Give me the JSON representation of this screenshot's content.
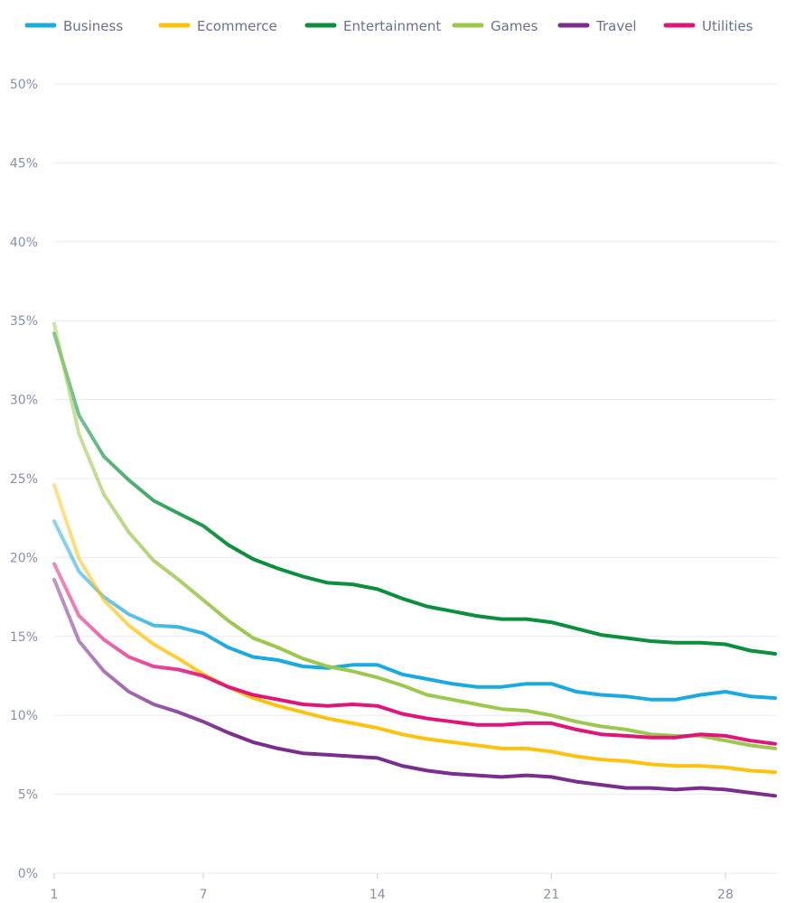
{
  "chart_data": {
    "type": "line",
    "title": "",
    "xlabel": "",
    "ylabel": "",
    "x": [
      1,
      2,
      3,
      4,
      5,
      6,
      7,
      8,
      9,
      10,
      11,
      12,
      13,
      14,
      15,
      16,
      17,
      18,
      19,
      20,
      21,
      22,
      23,
      24,
      25,
      26,
      27,
      28,
      29,
      30
    ],
    "xticks": [
      1,
      7,
      14,
      21,
      28
    ],
    "xtick_labels": [
      "1",
      "7",
      "14",
      "21",
      "28"
    ],
    "yticks": [
      0,
      5,
      10,
      15,
      20,
      25,
      30,
      35,
      40,
      45,
      50
    ],
    "ytick_labels": [
      "0%",
      "5%",
      "10%",
      "15%",
      "20%",
      "25%",
      "30%",
      "35%",
      "40%",
      "45%",
      "50%"
    ],
    "ylim": [
      0,
      50
    ],
    "grid": true,
    "legend_position": "top",
    "series": [
      {
        "name": "Business",
        "color": "#1ba9e1",
        "values": [
          22.3,
          19.1,
          17.5,
          16.4,
          15.7,
          15.6,
          15.2,
          14.3,
          13.7,
          13.5,
          13.1,
          13.0,
          13.2,
          13.2,
          12.6,
          12.3,
          12.0,
          11.8,
          11.8,
          12.0,
          12.0,
          11.5,
          11.3,
          11.2,
          11.0,
          11.0,
          11.3,
          11.5,
          11.2,
          11.1
        ]
      },
      {
        "name": "Ecommerce",
        "color": "#ffc20e",
        "values": [
          24.6,
          19.9,
          17.3,
          15.7,
          14.5,
          13.6,
          12.6,
          11.8,
          11.1,
          10.6,
          10.2,
          9.8,
          9.5,
          9.2,
          8.8,
          8.5,
          8.3,
          8.1,
          7.9,
          7.9,
          7.7,
          7.4,
          7.2,
          7.1,
          6.9,
          6.8,
          6.8,
          6.7,
          6.5,
          6.4
        ]
      },
      {
        "name": "Entertainment",
        "color": "#0a8f3c",
        "values": [
          34.2,
          29.0,
          26.4,
          24.9,
          23.6,
          22.8,
          22.0,
          20.8,
          19.9,
          19.3,
          18.8,
          18.4,
          18.3,
          18.0,
          17.4,
          16.9,
          16.6,
          16.3,
          16.1,
          16.1,
          15.9,
          15.5,
          15.1,
          14.9,
          14.7,
          14.6,
          14.6,
          14.5,
          14.1,
          13.9
        ]
      },
      {
        "name": "Games",
        "color": "#9dc84f",
        "values": [
          34.8,
          27.8,
          24.0,
          21.6,
          19.8,
          18.6,
          17.3,
          16.0,
          14.9,
          14.3,
          13.6,
          13.1,
          12.8,
          12.4,
          11.9,
          11.3,
          11.0,
          10.7,
          10.4,
          10.3,
          10.0,
          9.6,
          9.3,
          9.1,
          8.8,
          8.7,
          8.7,
          8.4,
          8.1,
          7.9
        ]
      },
      {
        "name": "Travel",
        "color": "#7b2d8e",
        "values": [
          18.6,
          14.7,
          12.8,
          11.5,
          10.7,
          10.2,
          9.6,
          8.9,
          8.3,
          7.9,
          7.6,
          7.5,
          7.4,
          7.3,
          6.8,
          6.5,
          6.3,
          6.2,
          6.1,
          6.2,
          6.1,
          5.8,
          5.6,
          5.4,
          5.4,
          5.3,
          5.4,
          5.3,
          5.1,
          4.9
        ]
      },
      {
        "name": "Utilities",
        "color": "#e0157a",
        "values": [
          19.6,
          16.3,
          14.8,
          13.7,
          13.1,
          12.9,
          12.5,
          11.8,
          11.3,
          11.0,
          10.7,
          10.6,
          10.7,
          10.6,
          10.1,
          9.8,
          9.6,
          9.4,
          9.4,
          9.5,
          9.5,
          9.1,
          8.8,
          8.7,
          8.6,
          8.6,
          8.8,
          8.7,
          8.4,
          8.2
        ]
      }
    ]
  }
}
